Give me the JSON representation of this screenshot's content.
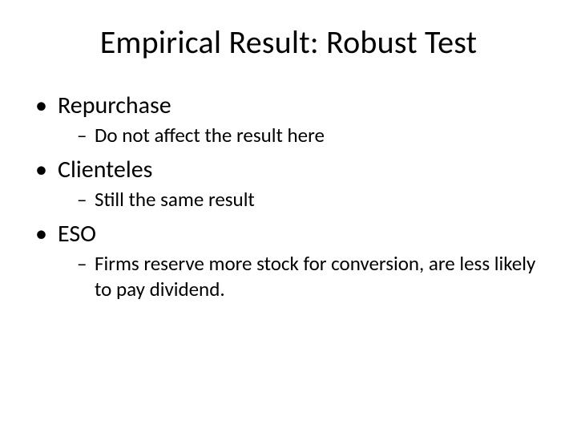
{
  "title": "Empirical Result: Robust Test",
  "colors": {
    "background": "#ffffff",
    "text": "#000000"
  },
  "bullets": {
    "level1": "•",
    "level2": "–"
  },
  "items": [
    {
      "label": "Repurchase",
      "sub": [
        {
          "text": "Do not affect the result here"
        }
      ]
    },
    {
      "label": "Clienteles",
      "sub": [
        {
          "text": "Still the same result"
        }
      ]
    },
    {
      "label": "ESO",
      "sub": [
        {
          "text": "Firms reserve more stock for conversion, are less likely to pay dividend."
        }
      ]
    }
  ]
}
